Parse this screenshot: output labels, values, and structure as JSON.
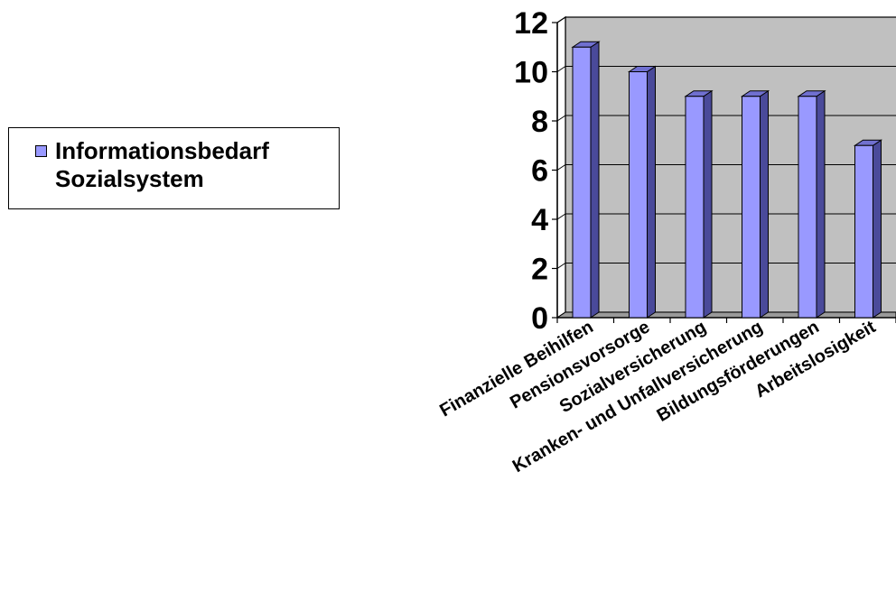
{
  "chart_data": {
    "type": "bar",
    "categories": [
      "Finanzielle Beihilfen",
      "Pensionsvorsorge",
      "Sozialversicherung",
      "Kranken- und Unfallversicherung",
      "Bildungsförderungen",
      "Arbeitslosigkeit"
    ],
    "series": [
      {
        "name": "Informationsbedarf Sozialsystem",
        "values": [
          11,
          10,
          9,
          9,
          9,
          7
        ]
      }
    ],
    "ylim": [
      0,
      12
    ],
    "yticks": [
      0,
      2,
      4,
      6,
      8,
      10,
      12
    ],
    "grid": true,
    "legend_position": "left",
    "colors": {
      "bar_front": "#9999ff",
      "bar_side": "#4a4a9a",
      "bar_top": "#7070d0",
      "plot_wall": "#c0c0c0",
      "floor": "#9a9a9a"
    }
  },
  "legend": {
    "label": "Informationsbedarf\nSozialsystem"
  }
}
